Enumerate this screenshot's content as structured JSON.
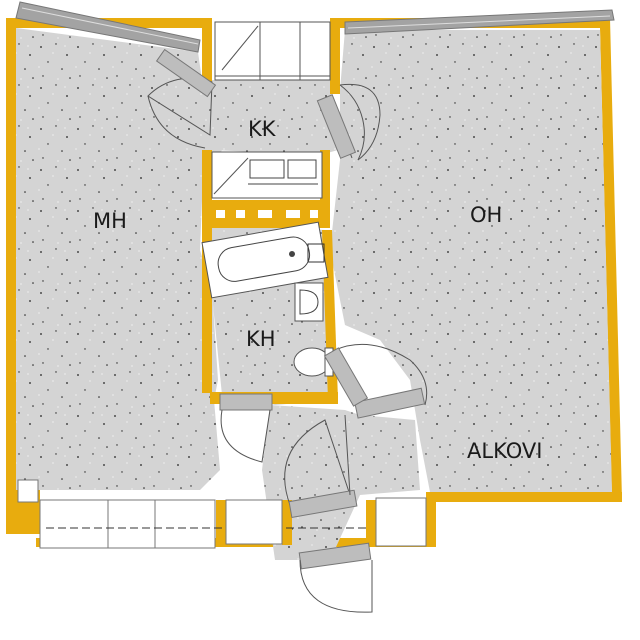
{
  "rooms": {
    "mh": "MH",
    "kk": "KK",
    "oh": "OH",
    "kh": "KH",
    "alkovi": "ALKOVI"
  },
  "colors": {
    "floor": "#d4d4d4",
    "wall": "#e8ac0e",
    "door_panel": "#bdbdbd",
    "line": "#555555",
    "background": "#ffffff"
  },
  "icons": [
    "bathtub-icon",
    "sink-icon",
    "toilet-icon",
    "stove-icon",
    "kitchen-sink-icon"
  ]
}
